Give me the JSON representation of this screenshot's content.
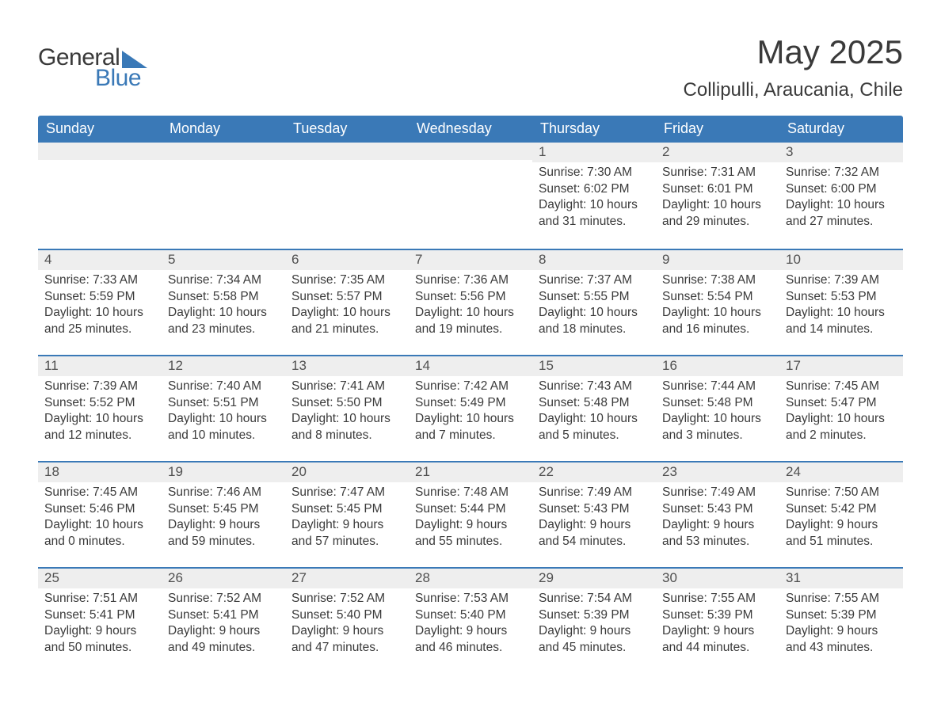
{
  "logo": {
    "word1": "General",
    "word2": "Blue"
  },
  "header": {
    "title": "May 2025",
    "location": "Collipulli, Araucania, Chile"
  },
  "colors": {
    "header_bg": "#3a79b7",
    "header_text": "#ffffff",
    "daynum_bg": "#eeeeee",
    "rule": "#3a79b7",
    "body_text": "#3a3a3a"
  },
  "calendar": {
    "day_names": [
      "Sunday",
      "Monday",
      "Tuesday",
      "Wednesday",
      "Thursday",
      "Friday",
      "Saturday"
    ],
    "weeks": [
      [
        {
          "day": "",
          "lines": []
        },
        {
          "day": "",
          "lines": []
        },
        {
          "day": "",
          "lines": []
        },
        {
          "day": "",
          "lines": []
        },
        {
          "day": "1",
          "lines": [
            "Sunrise: 7:30 AM",
            "Sunset: 6:02 PM",
            "Daylight: 10 hours",
            "and 31 minutes."
          ]
        },
        {
          "day": "2",
          "lines": [
            "Sunrise: 7:31 AM",
            "Sunset: 6:01 PM",
            "Daylight: 10 hours",
            "and 29 minutes."
          ]
        },
        {
          "day": "3",
          "lines": [
            "Sunrise: 7:32 AM",
            "Sunset: 6:00 PM",
            "Daylight: 10 hours",
            "and 27 minutes."
          ]
        }
      ],
      [
        {
          "day": "4",
          "lines": [
            "Sunrise: 7:33 AM",
            "Sunset: 5:59 PM",
            "Daylight: 10 hours",
            "and 25 minutes."
          ]
        },
        {
          "day": "5",
          "lines": [
            "Sunrise: 7:34 AM",
            "Sunset: 5:58 PM",
            "Daylight: 10 hours",
            "and 23 minutes."
          ]
        },
        {
          "day": "6",
          "lines": [
            "Sunrise: 7:35 AM",
            "Sunset: 5:57 PM",
            "Daylight: 10 hours",
            "and 21 minutes."
          ]
        },
        {
          "day": "7",
          "lines": [
            "Sunrise: 7:36 AM",
            "Sunset: 5:56 PM",
            "Daylight: 10 hours",
            "and 19 minutes."
          ]
        },
        {
          "day": "8",
          "lines": [
            "Sunrise: 7:37 AM",
            "Sunset: 5:55 PM",
            "Daylight: 10 hours",
            "and 18 minutes."
          ]
        },
        {
          "day": "9",
          "lines": [
            "Sunrise: 7:38 AM",
            "Sunset: 5:54 PM",
            "Daylight: 10 hours",
            "and 16 minutes."
          ]
        },
        {
          "day": "10",
          "lines": [
            "Sunrise: 7:39 AM",
            "Sunset: 5:53 PM",
            "Daylight: 10 hours",
            "and 14 minutes."
          ]
        }
      ],
      [
        {
          "day": "11",
          "lines": [
            "Sunrise: 7:39 AM",
            "Sunset: 5:52 PM",
            "Daylight: 10 hours",
            "and 12 minutes."
          ]
        },
        {
          "day": "12",
          "lines": [
            "Sunrise: 7:40 AM",
            "Sunset: 5:51 PM",
            "Daylight: 10 hours",
            "and 10 minutes."
          ]
        },
        {
          "day": "13",
          "lines": [
            "Sunrise: 7:41 AM",
            "Sunset: 5:50 PM",
            "Daylight: 10 hours",
            "and 8 minutes."
          ]
        },
        {
          "day": "14",
          "lines": [
            "Sunrise: 7:42 AM",
            "Sunset: 5:49 PM",
            "Daylight: 10 hours",
            "and 7 minutes."
          ]
        },
        {
          "day": "15",
          "lines": [
            "Sunrise: 7:43 AM",
            "Sunset: 5:48 PM",
            "Daylight: 10 hours",
            "and 5 minutes."
          ]
        },
        {
          "day": "16",
          "lines": [
            "Sunrise: 7:44 AM",
            "Sunset: 5:48 PM",
            "Daylight: 10 hours",
            "and 3 minutes."
          ]
        },
        {
          "day": "17",
          "lines": [
            "Sunrise: 7:45 AM",
            "Sunset: 5:47 PM",
            "Daylight: 10 hours",
            "and 2 minutes."
          ]
        }
      ],
      [
        {
          "day": "18",
          "lines": [
            "Sunrise: 7:45 AM",
            "Sunset: 5:46 PM",
            "Daylight: 10 hours",
            "and 0 minutes."
          ]
        },
        {
          "day": "19",
          "lines": [
            "Sunrise: 7:46 AM",
            "Sunset: 5:45 PM",
            "Daylight: 9 hours",
            "and 59 minutes."
          ]
        },
        {
          "day": "20",
          "lines": [
            "Sunrise: 7:47 AM",
            "Sunset: 5:45 PM",
            "Daylight: 9 hours",
            "and 57 minutes."
          ]
        },
        {
          "day": "21",
          "lines": [
            "Sunrise: 7:48 AM",
            "Sunset: 5:44 PM",
            "Daylight: 9 hours",
            "and 55 minutes."
          ]
        },
        {
          "day": "22",
          "lines": [
            "Sunrise: 7:49 AM",
            "Sunset: 5:43 PM",
            "Daylight: 9 hours",
            "and 54 minutes."
          ]
        },
        {
          "day": "23",
          "lines": [
            "Sunrise: 7:49 AM",
            "Sunset: 5:43 PM",
            "Daylight: 9 hours",
            "and 53 minutes."
          ]
        },
        {
          "day": "24",
          "lines": [
            "Sunrise: 7:50 AM",
            "Sunset: 5:42 PM",
            "Daylight: 9 hours",
            "and 51 minutes."
          ]
        }
      ],
      [
        {
          "day": "25",
          "lines": [
            "Sunrise: 7:51 AM",
            "Sunset: 5:41 PM",
            "Daylight: 9 hours",
            "and 50 minutes."
          ]
        },
        {
          "day": "26",
          "lines": [
            "Sunrise: 7:52 AM",
            "Sunset: 5:41 PM",
            "Daylight: 9 hours",
            "and 49 minutes."
          ]
        },
        {
          "day": "27",
          "lines": [
            "Sunrise: 7:52 AM",
            "Sunset: 5:40 PM",
            "Daylight: 9 hours",
            "and 47 minutes."
          ]
        },
        {
          "day": "28",
          "lines": [
            "Sunrise: 7:53 AM",
            "Sunset: 5:40 PM",
            "Daylight: 9 hours",
            "and 46 minutes."
          ]
        },
        {
          "day": "29",
          "lines": [
            "Sunrise: 7:54 AM",
            "Sunset: 5:39 PM",
            "Daylight: 9 hours",
            "and 45 minutes."
          ]
        },
        {
          "day": "30",
          "lines": [
            "Sunrise: 7:55 AM",
            "Sunset: 5:39 PM",
            "Daylight: 9 hours",
            "and 44 minutes."
          ]
        },
        {
          "day": "31",
          "lines": [
            "Sunrise: 7:55 AM",
            "Sunset: 5:39 PM",
            "Daylight: 9 hours",
            "and 43 minutes."
          ]
        }
      ]
    ]
  }
}
